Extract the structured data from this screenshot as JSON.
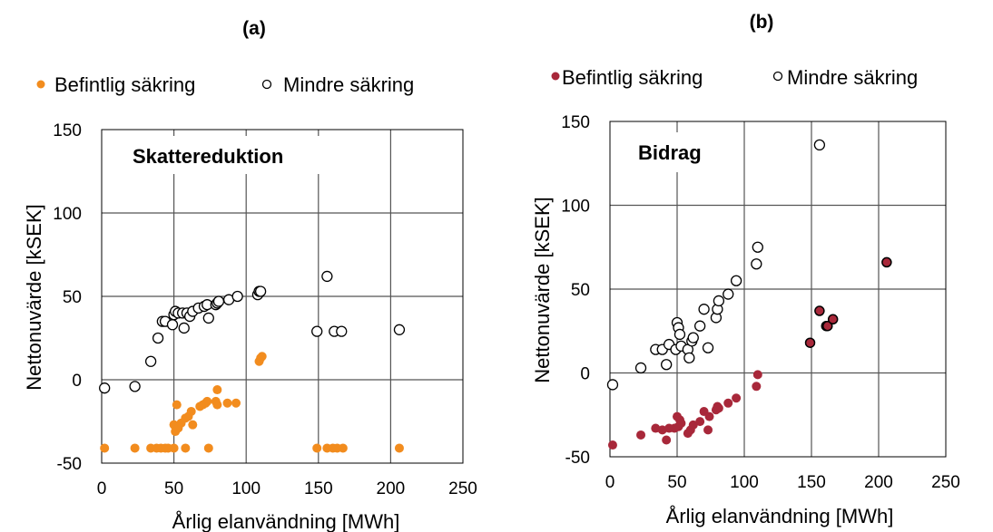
{
  "chart_data": [
    {
      "panel_label": "(a)",
      "type": "scatter",
      "annotation": "Skattereduktion",
      "xlabel": "Årlig elanvändning [MWh]",
      "ylabel": "Nettonuvärde [kSEK]",
      "xlim": [
        0,
        250
      ],
      "ylim": [
        -50,
        150
      ],
      "xticks": [
        "0",
        "50",
        "100",
        "150",
        "200",
        "250"
      ],
      "yticks": [
        "150",
        "100",
        "50",
        "0",
        "-50"
      ],
      "grid": true,
      "legend_placement": "top",
      "series": [
        {
          "name": "Befintlig säkring",
          "marker": "filled-circle",
          "color": "#f28c1e",
          "points": [
            [
              2,
              -41
            ],
            [
              23,
              -41
            ],
            [
              34,
              -41
            ],
            [
              38,
              -41
            ],
            [
              41,
              -41
            ],
            [
              44,
              -41
            ],
            [
              46,
              -41
            ],
            [
              50,
              -41
            ],
            [
              58,
              -41
            ],
            [
              74,
              -41
            ],
            [
              50,
              -27
            ],
            [
              51,
              -31
            ],
            [
              52,
              -15
            ],
            [
              53,
              -29
            ],
            [
              55,
              -26
            ],
            [
              58,
              -23
            ],
            [
              60,
              -22
            ],
            [
              62,
              -19
            ],
            [
              63,
              -27
            ],
            [
              68,
              -16
            ],
            [
              70,
              -15
            ],
            [
              72,
              -14
            ],
            [
              73,
              -13
            ],
            [
              79,
              -13
            ],
            [
              80,
              -15
            ],
            [
              80,
              -6
            ],
            [
              87,
              -14
            ],
            [
              93,
              -14
            ],
            [
              109,
              11
            ],
            [
              110,
              13
            ],
            [
              111,
              14
            ],
            [
              149,
              -41
            ],
            [
              156,
              -41
            ],
            [
              160,
              -41
            ],
            [
              163,
              -41
            ],
            [
              167,
              -41
            ],
            [
              206,
              -41
            ]
          ]
        },
        {
          "name": "Mindre säkring",
          "marker": "open-circle",
          "color": "#000000",
          "points": [
            [
              2,
              -5
            ],
            [
              23,
              -4
            ],
            [
              34,
              11
            ],
            [
              39,
              25
            ],
            [
              42,
              35
            ],
            [
              44,
              35
            ],
            [
              49,
              33
            ],
            [
              50,
              39
            ],
            [
              51,
              41
            ],
            [
              53,
              40
            ],
            [
              56,
              40
            ],
            [
              57,
              31
            ],
            [
              59,
              40
            ],
            [
              61,
              38
            ],
            [
              63,
              41
            ],
            [
              67,
              43
            ],
            [
              71,
              44
            ],
            [
              73,
              45
            ],
            [
              74,
              37
            ],
            [
              79,
              45
            ],
            [
              80,
              46
            ],
            [
              81,
              47
            ],
            [
              88,
              48
            ],
            [
              94,
              50
            ],
            [
              108,
              51
            ],
            [
              109,
              53
            ],
            [
              110,
              53
            ],
            [
              149,
              29
            ],
            [
              156,
              62
            ],
            [
              161,
              29
            ],
            [
              166,
              29
            ],
            [
              206,
              30
            ]
          ]
        }
      ]
    },
    {
      "panel_label": "(b)",
      "type": "scatter",
      "annotation": "Bidrag",
      "xlabel": "Årlig elanvändning [MWh]",
      "ylabel": "Nettonuvärde [kSEK]",
      "xlim": [
        0,
        250
      ],
      "ylim": [
        -50,
        150
      ],
      "xticks": [
        "0",
        "50",
        "100",
        "150",
        "200",
        "250"
      ],
      "yticks": [
        "150",
        "100",
        "50",
        "0",
        "-50"
      ],
      "grid": true,
      "legend_placement": "top",
      "series": [
        {
          "name": "Befintlig säkring",
          "marker": "filled-circle",
          "color": "#a8283a",
          "points": [
            [
              2,
              -43
            ],
            [
              23,
              -37
            ],
            [
              34,
              -33
            ],
            [
              39,
              -34
            ],
            [
              42,
              -40
            ],
            [
              44,
              -33
            ],
            [
              48,
              -33
            ],
            [
              50,
              -26
            ],
            [
              51,
              -32
            ],
            [
              52,
              -28
            ],
            [
              53,
              -30
            ],
            [
              58,
              -36
            ],
            [
              60,
              -34
            ],
            [
              62,
              -31
            ],
            [
              67,
              -29
            ],
            [
              70,
              -23
            ],
            [
              73,
              -34
            ],
            [
              74,
              -26
            ],
            [
              79,
              -22
            ],
            [
              80,
              -20
            ],
            [
              81,
              -21
            ],
            [
              88,
              -18
            ],
            [
              94,
              -15
            ],
            [
              109,
              -8
            ],
            [
              110,
              -1
            ],
            [
              149,
              18
            ],
            [
              156,
              37
            ],
            [
              161,
              28
            ],
            [
              162,
              28
            ],
            [
              166,
              32
            ],
            [
              206,
              66
            ]
          ]
        },
        {
          "name": "Mindre säkring",
          "marker": "open-circle",
          "color": "#000000",
          "points": [
            [
              2,
              -7
            ],
            [
              23,
              3
            ],
            [
              34,
              14
            ],
            [
              39,
              14
            ],
            [
              42,
              5
            ],
            [
              44,
              17
            ],
            [
              49,
              14
            ],
            [
              50,
              30
            ],
            [
              51,
              27
            ],
            [
              52,
              23
            ],
            [
              53,
              16
            ],
            [
              58,
              14
            ],
            [
              59,
              9
            ],
            [
              61,
              19
            ],
            [
              62,
              21
            ],
            [
              67,
              28
            ],
            [
              70,
              38
            ],
            [
              73,
              15
            ],
            [
              79,
              33
            ],
            [
              80,
              38
            ],
            [
              81,
              43
            ],
            [
              88,
              47
            ],
            [
              94,
              55
            ],
            [
              109,
              65
            ],
            [
              110,
              75
            ],
            [
              156,
              136
            ]
          ]
        }
      ]
    }
  ]
}
